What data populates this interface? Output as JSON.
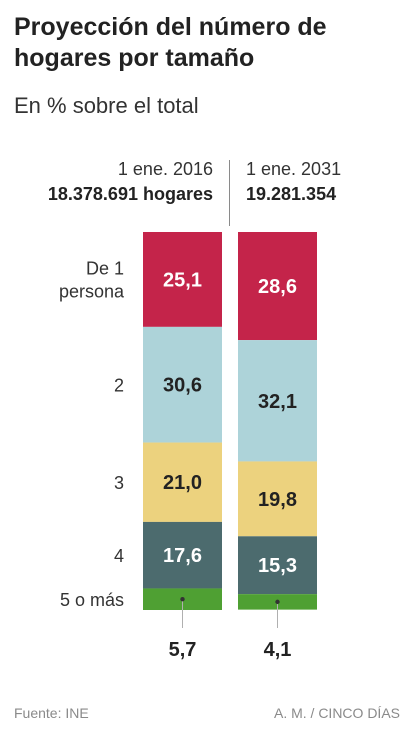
{
  "title": "Proyección del número de hogares por tamaño",
  "subtitle": "En % sobre el total",
  "columns": [
    {
      "date": "1 ene. 2016",
      "total": "18.378.691 hogares"
    },
    {
      "date": "1 ene. 2031",
      "total": "19.281.354"
    }
  ],
  "chart_data": {
    "type": "bar",
    "stacked": true,
    "orientation": "vertical",
    "title": "Proyección del número de hogares por tamaño",
    "ylabel": "En % sobre el total",
    "categories": [
      "1 ene. 2016",
      "1 ene. 2031"
    ],
    "series": [
      {
        "name": "De 1 persona",
        "color": "#c4244a",
        "labels": [
          "25,1",
          "28,6"
        ],
        "values": [
          25.1,
          28.6
        ]
      },
      {
        "name": "2",
        "color": "#add3d9",
        "labels": [
          "30,6",
          "32,1"
        ],
        "values": [
          30.6,
          32.1
        ]
      },
      {
        "name": "3",
        "color": "#ecd27e",
        "labels": [
          "21,0",
          "19,8"
        ],
        "values": [
          21.0,
          19.8
        ]
      },
      {
        "name": "4",
        "color": "#4c6b6e",
        "labels": [
          "17,6",
          "15,3"
        ],
        "values": [
          17.6,
          15.3
        ]
      },
      {
        "name": "5 o más",
        "color": "#4fa033",
        "labels": [
          "5,7",
          "4,1"
        ],
        "values": [
          5.7,
          4.1
        ]
      }
    ],
    "ylim": [
      0,
      100
    ]
  },
  "footer": {
    "source": "Fuente: INE",
    "credit": "A. M. / CINCO DÍAS"
  }
}
